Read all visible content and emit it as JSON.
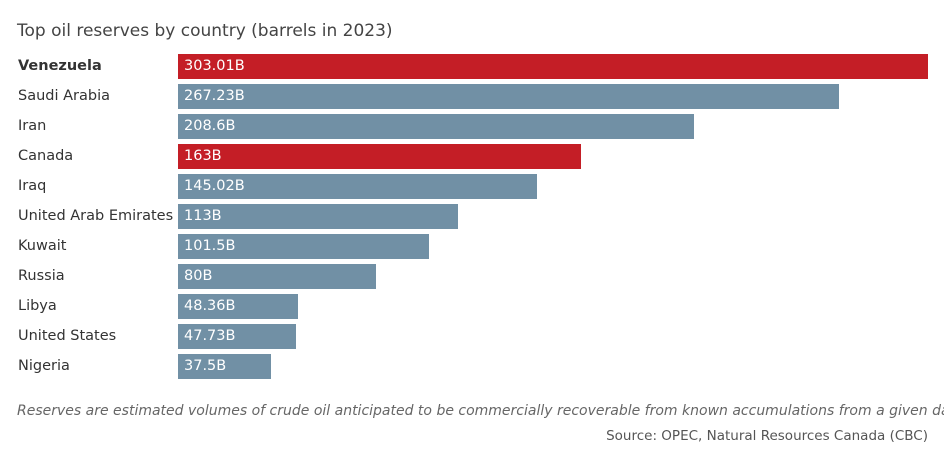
{
  "colors": {
    "highlight": "#c41e26",
    "default": "#7190a5"
  },
  "chart_data": {
    "type": "bar",
    "orientation": "horizontal",
    "title": "Top oil reserves by country (barrels in 2023)",
    "categories": [
      "Venezuela",
      "Saudi Arabia",
      "Iran",
      "Canada",
      "Iraq",
      "United Arab Emirates",
      "Kuwait",
      "Russia",
      "Libya",
      "United States",
      "Nigeria"
    ],
    "values": [
      303.01,
      267.23,
      208.6,
      163,
      145.02,
      113,
      101.5,
      80,
      48.36,
      47.73,
      37.5
    ],
    "labels": [
      "303.01B",
      "267.23B",
      "208.6B",
      "163B",
      "145.02B",
      "113B",
      "101.5B",
      "80B",
      "48.36B",
      "47.73B",
      "37.5B"
    ],
    "highlighted": [
      "Venezuela",
      "Canada"
    ],
    "bold": [
      "Venezuela"
    ],
    "units": "billion barrels",
    "xlim": [
      0,
      303.01
    ],
    "xlabel": "",
    "ylabel": "",
    "grid": false
  },
  "footer": {
    "note": "Reserves are estimated volumes of crude oil anticipated to be commercially recoverable from known accumulations from a given date.",
    "source": "Source: OPEC, Natural Resources Canada (CBC)"
  }
}
